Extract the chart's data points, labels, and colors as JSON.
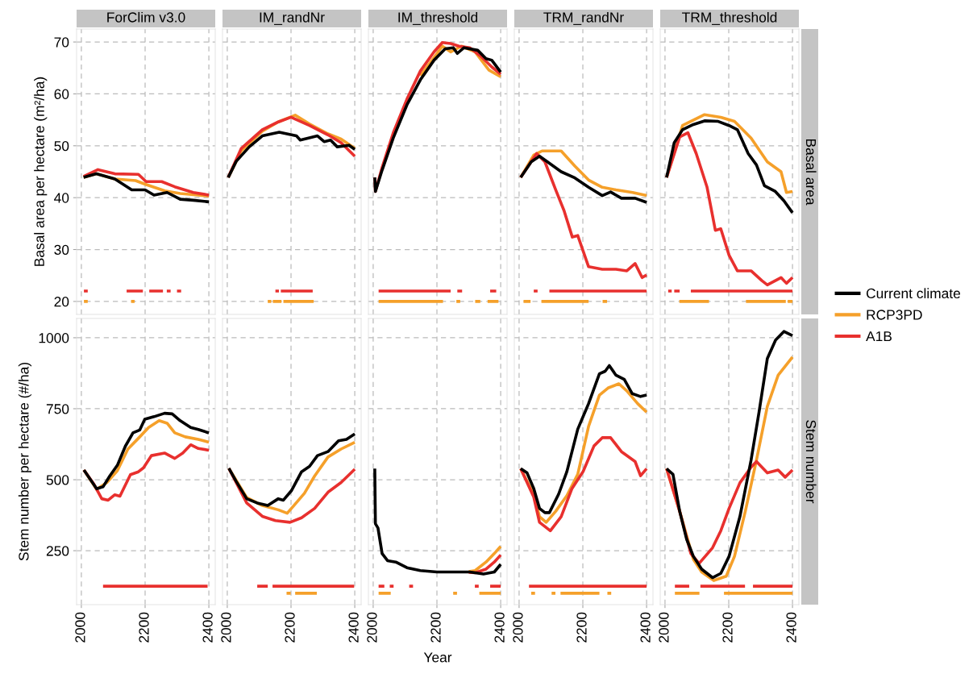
{
  "chart_data": [
    {
      "type": "line",
      "title": "ForClim v3.0",
      "ylabel": "Basal area per hectare (m²/ha)",
      "xlim": [
        1985,
        2420
      ],
      "xticks": [
        2000,
        2200,
        2400
      ],
      "ylim": [
        17.5,
        72.5
      ],
      "yticks": [
        20,
        30,
        40,
        50,
        60,
        70
      ],
      "grid": true,
      "tick_labels": "y",
      "series": [
        {
          "color": "#000000",
          "x": [
            2007,
            2047,
            2105,
            2158,
            2200,
            2228,
            2269,
            2310,
            2351,
            2400
          ],
          "values": [
            43.9,
            44.6,
            43.6,
            41.5,
            41.5,
            40.5,
            41.0,
            39.7,
            39.5,
            39.2
          ]
        },
        {
          "color": "#f5a02a",
          "x": [
            2007,
            2047,
            2105,
            2170,
            2200,
            2262,
            2310,
            2400
          ],
          "values": [
            43.9,
            44.6,
            43.6,
            43.3,
            42.6,
            41.3,
            40.8,
            40.3
          ]
        },
        {
          "color": "#e8302e",
          "x": [
            2007,
            2052,
            2105,
            2179,
            2203,
            2252,
            2293,
            2351,
            2400
          ],
          "values": [
            44.1,
            45.4,
            44.6,
            44.5,
            43.1,
            43.1,
            42.1,
            41.0,
            40.5
          ]
        },
        {
          "color": "#e8302e",
          "x": [
            2008,
            2020,
            2080,
            2142,
            2193,
            2203,
            2213,
            2256,
            2262,
            2268,
            2280,
            2290,
            2300,
            2313
          ],
          "values": [
            22,
            22,
            null,
            22,
            22,
            null,
            22,
            22,
            null,
            22,
            22,
            null,
            22,
            22
          ]
        },
        {
          "color": "#f5a02a",
          "x": [
            2008,
            2020,
            2090,
            2156,
            2167
          ],
          "values": [
            20,
            20,
            null,
            20,
            20
          ]
        }
      ]
    },
    {
      "type": "line",
      "title": "IM_randNr",
      "xlim": [
        1985,
        2420
      ],
      "xticks": [
        2000,
        2200,
        2400
      ],
      "ylim": [
        17.5,
        72.5
      ],
      "yticks": [
        20,
        30,
        40,
        50,
        60,
        70
      ],
      "grid": true,
      "tick_labels": false,
      "series": [
        {
          "color": "#000000",
          "x": [
            2003,
            2028,
            2069,
            2110,
            2163,
            2217,
            2229,
            2283,
            2304,
            2324,
            2345,
            2382,
            2400
          ],
          "values": [
            43.9,
            47.0,
            49.8,
            51.9,
            52.6,
            51.9,
            51.1,
            51.9,
            50.8,
            51.1,
            49.8,
            50.1,
            49.3
          ]
        },
        {
          "color": "#f5a02a",
          "x": [
            2003,
            2044,
            2110,
            2160,
            2213,
            2258,
            2316,
            2357,
            2400
          ],
          "values": [
            43.9,
            49.0,
            52.8,
            54.6,
            55.9,
            54.2,
            52.3,
            51.3,
            49.5
          ]
        },
        {
          "color": "#e8302e",
          "x": [
            2003,
            2044,
            2110,
            2160,
            2200,
            2258,
            2316,
            2357,
            2400
          ],
          "values": [
            43.9,
            49.5,
            53.1,
            54.6,
            55.5,
            53.9,
            52.1,
            50.6,
            48.0
          ]
        },
        {
          "color": "#e8302e",
          "x": [
            2151,
            2162,
            2165,
            2168,
            2268
          ],
          "values": [
            22,
            22,
            null,
            22,
            22
          ]
        },
        {
          "color": "#f5a02a",
          "x": [
            2127,
            2138,
            2140,
            2143,
            2170,
            2173,
            2176,
            2271
          ],
          "values": [
            20,
            20,
            null,
            20,
            20,
            null,
            20,
            20
          ]
        }
      ]
    },
    {
      "type": "line",
      "title": "IM_threshold",
      "xlim": [
        1985,
        2420
      ],
      "xticks": [
        2000,
        2200,
        2400
      ],
      "ylim": [
        17.5,
        72.5
      ],
      "yticks": [
        20,
        30,
        40,
        50,
        60,
        70
      ],
      "grid": true,
      "tick_labels": false,
      "series": [
        {
          "color": "#000000",
          "x": [
            2005,
            2007,
            2028,
            2063,
            2106,
            2148,
            2191,
            2226,
            2251,
            2264,
            2285,
            2328,
            2354,
            2372,
            2400
          ],
          "values": [
            43.9,
            41.2,
            45.3,
            51.5,
            57.9,
            62.7,
            66.5,
            68.7,
            68.9,
            67.8,
            68.9,
            68.4,
            66.8,
            66.5,
            64.2
          ]
        },
        {
          "color": "#f5a02a",
          "x": [
            2148,
            2191,
            2217,
            2243,
            2277,
            2320,
            2363,
            2400
          ],
          "values": [
            63.5,
            67.0,
            69.2,
            68.1,
            69.2,
            68.1,
            64.6,
            63.3
          ]
        },
        {
          "color": "#e8302e",
          "x": [
            2005,
            2007,
            2028,
            2063,
            2106,
            2148,
            2191,
            2217,
            2243,
            2269,
            2303,
            2337,
            2372,
            2400
          ],
          "values": [
            43.9,
            41.2,
            45.8,
            52.5,
            59.0,
            64.4,
            68.1,
            69.9,
            69.7,
            69.2,
            68.9,
            67.3,
            65.2,
            63.8
          ]
        },
        {
          "color": "#e8302e",
          "x": [
            2017,
            2243,
            2253,
            2264,
            2279,
            2320,
            2367,
            2386
          ],
          "values": [
            22,
            22,
            null,
            22,
            22,
            null,
            22,
            22
          ]
        },
        {
          "color": "#f5a02a",
          "x": [
            2017,
            2219,
            2240,
            2261,
            2273,
            2295,
            2320,
            2336,
            2348,
            2359,
            2393
          ],
          "values": [
            20,
            20,
            null,
            20,
            20,
            null,
            20,
            20,
            null,
            20,
            20
          ]
        }
      ]
    },
    {
      "type": "line",
      "title": "TRM_randNr",
      "xlim": [
        1985,
        2420
      ],
      "xticks": [
        2000,
        2200,
        2400
      ],
      "ylim": [
        17.5,
        72.5
      ],
      "yticks": [
        20,
        30,
        40,
        50,
        60,
        70
      ],
      "grid": true,
      "tick_labels": false,
      "series": [
        {
          "color": "#000000",
          "x": [
            2005,
            2038,
            2064,
            2089,
            2132,
            2175,
            2218,
            2261,
            2287,
            2321,
            2364,
            2400
          ],
          "values": [
            43.9,
            46.9,
            48.0,
            46.9,
            45.0,
            43.8,
            42.0,
            40.4,
            41.1,
            39.9,
            39.9,
            39.1
          ]
        },
        {
          "color": "#f5a02a",
          "x": [
            2005,
            2046,
            2072,
            2132,
            2175,
            2218,
            2261,
            2304,
            2356,
            2400
          ],
          "values": [
            43.9,
            48.2,
            49.0,
            49.0,
            46.1,
            43.4,
            42.0,
            41.5,
            41.0,
            40.4
          ]
        },
        {
          "color": "#e8302e",
          "x": [
            2005,
            2055,
            2081,
            2115,
            2141,
            2167,
            2184,
            2218,
            2261,
            2304,
            2338,
            2364,
            2386,
            2400
          ],
          "values": [
            43.9,
            48.5,
            46.9,
            41.5,
            37.5,
            32.4,
            32.7,
            26.7,
            26.2,
            26.2,
            25.9,
            27.3,
            24.6,
            25.1
          ]
        },
        {
          "color": "#e8302e",
          "x": [
            2046,
            2058,
            2075,
            2095,
            2400
          ],
          "values": [
            22,
            22,
            null,
            22,
            22
          ]
        },
        {
          "color": "#f5a02a",
          "x": [
            2014,
            2036,
            2053,
            2070,
            2218,
            2240,
            2262,
            2276
          ],
          "values": [
            20,
            20,
            null,
            20,
            20,
            null,
            20,
            20
          ]
        }
      ]
    },
    {
      "type": "line",
      "title": "TRM_threshold",
      "y2label": "Basal area",
      "xlim": [
        1985,
        2420
      ],
      "xticks": [
        2000,
        2200,
        2400
      ],
      "ylim": [
        17.5,
        72.5
      ],
      "yticks": [
        20,
        30,
        40,
        50,
        60,
        70
      ],
      "grid": true,
      "tick_labels": false,
      "legend": "right",
      "series": [
        {
          "name": "Current climate",
          "color": "#000000",
          "x": [
            2005,
            2029,
            2055,
            2089,
            2124,
            2167,
            2201,
            2227,
            2261,
            2287,
            2312,
            2346,
            2373,
            2400
          ],
          "values": [
            43.9,
            50.6,
            53.1,
            54.1,
            54.8,
            54.7,
            53.9,
            53.1,
            48.5,
            46.3,
            42.3,
            41.2,
            39.4,
            37.1
          ]
        },
        {
          "name": "RCP3PD",
          "color": "#f5a02a",
          "x": [
            2005,
            2055,
            2124,
            2175,
            2218,
            2270,
            2321,
            2364,
            2381,
            2400
          ],
          "values": [
            43.9,
            53.9,
            56.0,
            55.5,
            54.7,
            51.5,
            46.9,
            45.0,
            41.0,
            41.2
          ]
        },
        {
          "name": "A1B",
          "color": "#e8302e",
          "x": [
            2005,
            2046,
            2072,
            2098,
            2132,
            2158,
            2175,
            2201,
            2227,
            2270,
            2304,
            2321,
            2364,
            2381,
            2400
          ],
          "values": [
            43.9,
            51.7,
            52.5,
            48.5,
            42.0,
            33.7,
            34.0,
            28.9,
            25.9,
            25.9,
            24.0,
            23.2,
            24.6,
            23.5,
            24.6
          ]
        },
        {
          "color": "#e8302e",
          "x": [
            2010,
            2021,
            2025,
            2029,
            2046,
            2063,
            2081,
            2400
          ],
          "values": [
            22,
            22,
            null,
            22,
            22,
            null,
            22,
            22
          ]
        },
        {
          "color": "#f5a02a",
          "x": [
            2045,
            2138,
            2196,
            2254,
            2379,
            2382,
            2385,
            2400
          ],
          "values": [
            20,
            20,
            null,
            20,
            20,
            null,
            20,
            20
          ]
        }
      ]
    },
    {
      "type": "line",
      "ylabel": "Stem number per hectare (#/ha)",
      "xlim": [
        1985,
        2420
      ],
      "xticks": [
        2000,
        2200,
        2400
      ],
      "ylim": [
        60,
        1068
      ],
      "yticks": [
        250,
        500,
        750,
        1000
      ],
      "grid": true,
      "series": [
        {
          "color": "#000000",
          "x": [
            2008,
            2048,
            2068,
            2089,
            2113,
            2138,
            2162,
            2183,
            2199,
            2228,
            2261,
            2285,
            2310,
            2343,
            2367,
            2400
          ],
          "values": [
            534,
            468,
            475,
            513,
            551,
            618,
            665,
            675,
            713,
            722,
            734,
            732,
            708,
            684,
            677,
            665
          ]
        },
        {
          "color": "#f5a02a",
          "x": [
            2008,
            2048,
            2080,
            2113,
            2146,
            2179,
            2211,
            2244,
            2269,
            2293,
            2326,
            2367,
            2400
          ],
          "values": [
            534,
            466,
            490,
            532,
            608,
            646,
            684,
            708,
            699,
            665,
            651,
            642,
            632
          ]
        },
        {
          "color": "#e8302e",
          "x": [
            2008,
            2039,
            2064,
            2084,
            2105,
            2121,
            2154,
            2179,
            2195,
            2220,
            2261,
            2293,
            2318,
            2343,
            2367,
            2400
          ],
          "values": [
            534,
            485,
            433,
            428,
            447,
            442,
            518,
            528,
            542,
            585,
            594,
            575,
            594,
            623,
            610,
            604
          ]
        },
        {
          "color": "#e8302e",
          "x": [
            2068,
            2396
          ],
          "values": [
            125,
            125
          ]
        }
      ]
    },
    {
      "type": "line",
      "xlim": [
        1985,
        2420
      ],
      "xticks": [
        2000,
        2200,
        2400
      ],
      "ylim": [
        60,
        1068
      ],
      "yticks": [
        250,
        500,
        750,
        1000
      ],
      "grid": true,
      "tick_labels": "x",
      "series": [
        {
          "color": "#000000",
          "x": [
            2005,
            2028,
            2061,
            2094,
            2127,
            2160,
            2176,
            2201,
            2233,
            2258,
            2283,
            2316,
            2349,
            2374,
            2400
          ],
          "values": [
            540,
            494,
            433,
            418,
            409,
            433,
            428,
            461,
            528,
            547,
            585,
            599,
            637,
            642,
            661
          ]
        },
        {
          "color": "#f5a02a",
          "x": [
            2005,
            2061,
            2110,
            2160,
            2188,
            2209,
            2242,
            2274,
            2316,
            2357,
            2400
          ],
          "values": [
            540,
            437,
            409,
            394,
            382,
            409,
            452,
            513,
            580,
            608,
            632
          ]
        },
        {
          "color": "#e8302e",
          "x": [
            2005,
            2061,
            2110,
            2151,
            2197,
            2233,
            2274,
            2316,
            2357,
            2400
          ],
          "values": [
            540,
            418,
            371,
            356,
            350,
            366,
            399,
            456,
            490,
            537
          ]
        },
        {
          "color": "#e8302e",
          "x": [
            2094,
            2127,
            2135,
            2142,
            2398
          ],
          "values": [
            125,
            125,
            null,
            125,
            125
          ]
        },
        {
          "color": "#f5a02a",
          "x": [
            2186,
            2199,
            2206,
            2213,
            2281
          ],
          "values": [
            100,
            100,
            null,
            100,
            100
          ]
        }
      ]
    },
    {
      "type": "line",
      "xlabel": "Year",
      "xlim": [
        1985,
        2420
      ],
      "xticks": [
        2000,
        2200,
        2400
      ],
      "ylim": [
        60,
        1068
      ],
      "yticks": [
        250,
        500,
        750,
        1000
      ],
      "grid": true,
      "tick_labels": "x",
      "series": [
        {
          "color": "#000000",
          "x": [
            2005,
            2007,
            2015,
            2028,
            2045,
            2071,
            2106,
            2148,
            2200,
            2251,
            2303,
            2346,
            2380,
            2400
          ],
          "values": [
            539,
            345,
            330,
            240,
            215,
            210,
            190,
            180,
            175,
            175,
            175,
            168,
            175,
            202
          ]
        },
        {
          "color": "#f5a02a",
          "x": [
            2300,
            2320,
            2354,
            2380,
            2400
          ],
          "values": [
            176,
            180,
            210,
            240,
            265
          ]
        },
        {
          "color": "#e8302e",
          "x": [
            2300,
            2320,
            2354,
            2380,
            2400
          ],
          "values": [
            174,
            172,
            185,
            210,
            235
          ]
        },
        {
          "color": "#e8302e",
          "x": [
            2017,
            2035,
            2044,
            2052,
            2064,
            2090,
            2113,
            2125,
            2220,
            2319,
            2331,
            2346,
            2367,
            2400
          ],
          "values": [
            125,
            125,
            null,
            125,
            125,
            null,
            125,
            125,
            null,
            125,
            125,
            null,
            125,
            125
          ]
        },
        {
          "color": "#f5a02a",
          "x": [
            2017,
            2055,
            2150,
            2251,
            2263,
            2296,
            2333,
            2400
          ],
          "values": [
            100,
            100,
            null,
            100,
            100,
            null,
            100,
            100
          ]
        }
      ]
    },
    {
      "type": "line",
      "xlim": [
        1985,
        2420
      ],
      "xticks": [
        2000,
        2200,
        2400
      ],
      "ylim": [
        60,
        1068
      ],
      "yticks": [
        250,
        500,
        750,
        1000
      ],
      "grid": true,
      "tick_labels": "x",
      "series": [
        {
          "color": "#000000",
          "x": [
            2005,
            2025,
            2046,
            2064,
            2081,
            2095,
            2124,
            2150,
            2184,
            2218,
            2252,
            2270,
            2283,
            2304,
            2330,
            2355,
            2381,
            2400
          ],
          "values": [
            539,
            524,
            469,
            399,
            384,
            384,
            449,
            529,
            678,
            768,
            873,
            882,
            902,
            868,
            853,
            803,
            793,
            798
          ]
        },
        {
          "color": "#f5a02a",
          "x": [
            2005,
            2046,
            2064,
            2085,
            2115,
            2150,
            2184,
            2218,
            2252,
            2279,
            2313,
            2338,
            2372,
            2400
          ],
          "values": [
            539,
            449,
            370,
            350,
            389,
            444,
            519,
            688,
            798,
            823,
            838,
            813,
            768,
            738
          ]
        },
        {
          "color": "#e8302e",
          "x": [
            2005,
            2046,
            2064,
            2098,
            2132,
            2166,
            2201,
            2235,
            2261,
            2287,
            2321,
            2364,
            2381,
            2400
          ],
          "values": [
            539,
            439,
            350,
            320,
            370,
            469,
            529,
            619,
            648,
            648,
            599,
            564,
            514,
            539
          ]
        },
        {
          "color": "#e8302e",
          "x": [
            2031,
            2400
          ],
          "values": [
            125,
            125
          ]
        },
        {
          "color": "#f5a02a",
          "x": [
            2038,
            2050,
            2075,
            2102,
            2114,
            2122,
            2130,
            2252,
            2266,
            2277,
            2289
          ],
          "values": [
            100,
            100,
            null,
            100,
            100,
            null,
            100,
            100,
            null,
            100,
            100
          ]
        }
      ]
    },
    {
      "type": "line",
      "y2label": "Stem number",
      "xlim": [
        1985,
        2420
      ],
      "xticks": [
        2000,
        2200,
        2400
      ],
      "ylim": [
        60,
        1068
      ],
      "yticks": [
        250,
        500,
        750,
        1000
      ],
      "grid": true,
      "tick_labels": "x",
      "series": [
        {
          "color": "#000000",
          "x": [
            2005,
            2025,
            2046,
            2068,
            2089,
            2115,
            2149,
            2175,
            2201,
            2235,
            2270,
            2295,
            2321,
            2347,
            2373,
            2400
          ],
          "values": [
            539,
            519,
            389,
            290,
            230,
            185,
            155,
            170,
            230,
            370,
            569,
            738,
            927,
            992,
            1022,
            1007
          ]
        },
        {
          "color": "#f5a02a",
          "x": [
            2005,
            2046,
            2089,
            2115,
            2153,
            2192,
            2218,
            2252,
            2287,
            2321,
            2355,
            2400
          ],
          "values": [
            539,
            389,
            220,
            175,
            145,
            160,
            230,
            389,
            569,
            758,
            868,
            932
          ]
        },
        {
          "color": "#e8302e",
          "x": [
            2005,
            2046,
            2081,
            2107,
            2149,
            2175,
            2201,
            2235,
            2270,
            2287,
            2321,
            2355,
            2377,
            2400
          ],
          "values": [
            539,
            389,
            240,
            205,
            260,
            320,
            399,
            489,
            544,
            564,
            524,
            534,
            509,
            534
          ]
        },
        {
          "color": "#e8302e",
          "x": [
            2031,
            2076,
            2093,
            2111,
            2251,
            2263,
            2276,
            2400
          ],
          "values": [
            125,
            125,
            null,
            125,
            125,
            null,
            125,
            125
          ]
        },
        {
          "color": "#f5a02a",
          "x": [
            2031,
            2108,
            2146,
            2185,
            2400
          ],
          "values": [
            100,
            100,
            null,
            100,
            100
          ]
        }
      ]
    }
  ]
}
